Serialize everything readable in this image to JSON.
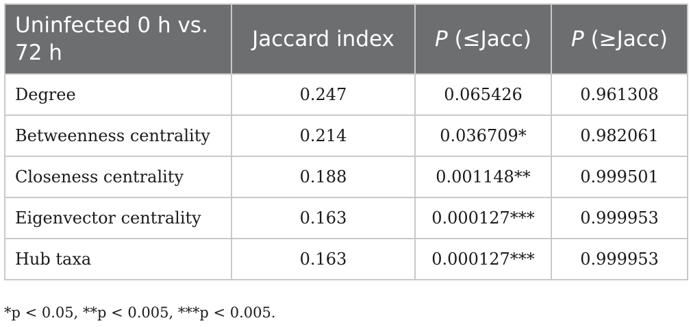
{
  "table": {
    "headers": [
      {
        "text": "Uninfected 0 h vs. 72 h"
      },
      {
        "text": "Jaccard index"
      },
      {
        "p": "P",
        "rest": " (≤Jacc)"
      },
      {
        "p": "P",
        "rest": " (≥Jacc)"
      }
    ],
    "rows": [
      {
        "metric": "Degree",
        "jaccard": "0.247",
        "p_le": "0.065426",
        "p_ge": "0.961308"
      },
      {
        "metric": "Betweenness centrality",
        "jaccard": "0.214",
        "p_le": "0.036709*",
        "p_ge": "0.982061"
      },
      {
        "metric": "Closeness centrality",
        "jaccard": "0.188",
        "p_le": "0.001148**",
        "p_ge": "0.999501"
      },
      {
        "metric": "Eigenvector centrality",
        "jaccard": "0.163",
        "p_le": "0.000127***",
        "p_ge": "0.999953"
      },
      {
        "metric": "Hub taxa",
        "jaccard": "0.163",
        "p_le": "0.000127***",
        "p_ge": "0.999953"
      }
    ]
  },
  "footnote": "*p < 0.05, **p < 0.005, ***p < 0.005."
}
